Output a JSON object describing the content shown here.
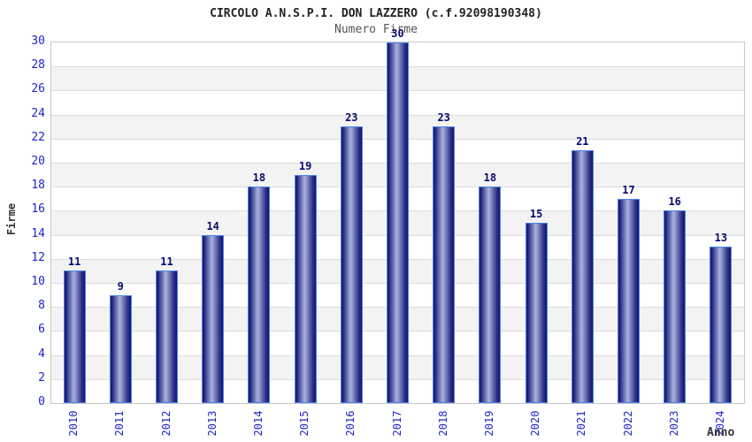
{
  "chart_data": {
    "type": "bar",
    "title": "CIRCOLO A.N.S.P.I. DON LAZZERO (c.f.92098190348)",
    "subtitle": "Numero Firme",
    "xlabel": "Anno",
    "ylabel": "Firme",
    "categories": [
      "2010",
      "2011",
      "2012",
      "2013",
      "2014",
      "2015",
      "2016",
      "2017",
      "2018",
      "2019",
      "2020",
      "2021",
      "2022",
      "2023",
      "2024"
    ],
    "values": [
      11,
      9,
      11,
      14,
      18,
      19,
      23,
      30,
      23,
      18,
      15,
      21,
      17,
      16,
      13
    ],
    "ylim": [
      0,
      30
    ],
    "ytick_step": 2,
    "grid": "horizontal",
    "legend_position": "none",
    "colors": {
      "bar_dark": "#16166e",
      "bar_highlight": "#aab2de",
      "bar_border": "#4d82ea",
      "tick_label": "#2323cc",
      "value_label": "#0a0a6e",
      "band_gray": "#f3f3f3",
      "band_white": "#ffffff",
      "gridline": "#dcdcdc",
      "plot_border": "#c8c8c8",
      "title_color": "#222222",
      "subtitle_color": "#555555",
      "axis_label_color": "#333333"
    }
  }
}
